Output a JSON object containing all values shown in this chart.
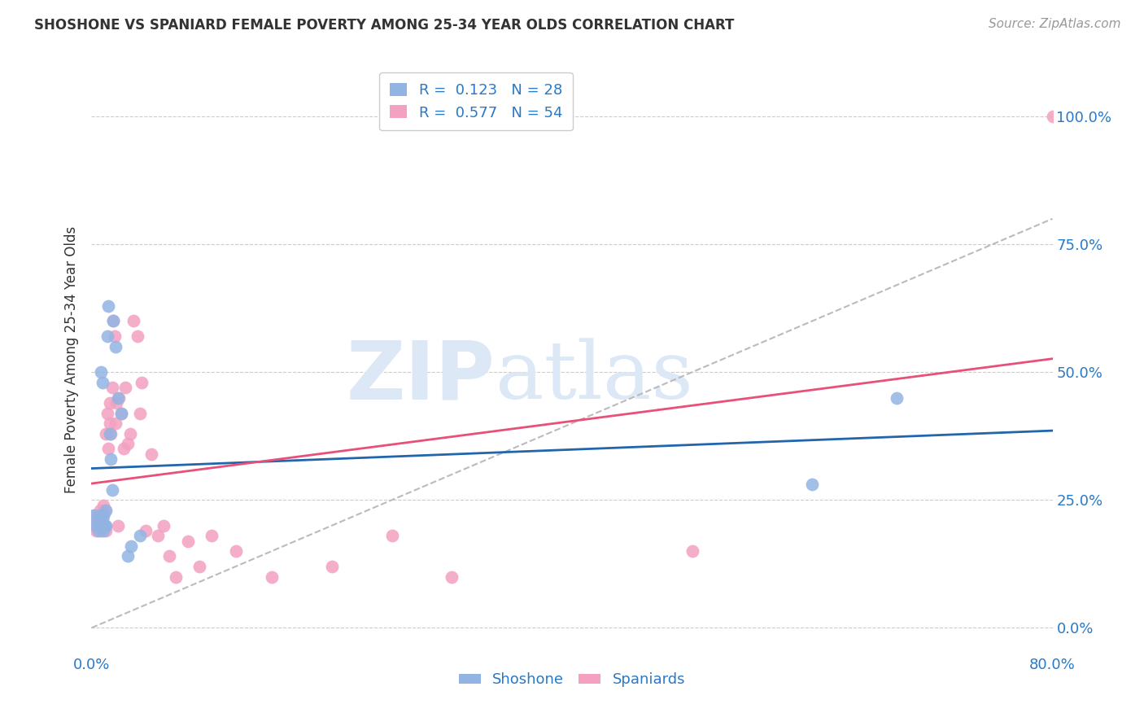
{
  "title": "SHOSHONE VS SPANIARD FEMALE POVERTY AMONG 25-34 YEAR OLDS CORRELATION CHART",
  "source": "Source: ZipAtlas.com",
  "ylabel": "Female Poverty Among 25-34 Year Olds",
  "xlim": [
    0.0,
    0.8
  ],
  "ylim": [
    -0.05,
    1.1
  ],
  "yticks": [
    0.0,
    0.25,
    0.5,
    0.75,
    1.0
  ],
  "ytick_labels": [
    "0.0%",
    "25.0%",
    "50.0%",
    "75.0%",
    "100.0%"
  ],
  "xtick_labels_left": [
    "0.0%",
    "80.0%"
  ],
  "xtick_positions_left": [
    0.0,
    0.8
  ],
  "shoshone_R": 0.123,
  "shoshone_N": 28,
  "spaniard_R": 0.577,
  "spaniard_N": 54,
  "shoshone_color": "#92b4e3",
  "spaniard_color": "#f4a0c0",
  "shoshone_line_color": "#2166ac",
  "spaniard_line_color": "#e8507a",
  "diagonal_color": "#bbbbbb",
  "background_color": "#ffffff",
  "grid_color": "#cccccc",
  "axis_label_color": "#2979c8",
  "title_color": "#333333",
  "watermark_zip": "ZIP",
  "watermark_atlas": "atlas",
  "watermark_color": "#dce8f5",
  "shoshone_x": [
    0.002,
    0.004,
    0.005,
    0.006,
    0.007,
    0.007,
    0.008,
    0.009,
    0.009,
    0.01,
    0.01,
    0.011,
    0.012,
    0.012,
    0.013,
    0.014,
    0.015,
    0.016,
    0.017,
    0.018,
    0.02,
    0.022,
    0.025,
    0.03,
    0.033,
    0.04,
    0.6,
    0.67
  ],
  "shoshone_y": [
    0.22,
    0.2,
    0.21,
    0.19,
    0.22,
    0.2,
    0.5,
    0.48,
    0.21,
    0.22,
    0.19,
    0.2,
    0.23,
    0.2,
    0.57,
    0.63,
    0.38,
    0.33,
    0.27,
    0.6,
    0.55,
    0.45,
    0.42,
    0.14,
    0.16,
    0.18,
    0.28,
    0.45
  ],
  "spaniard_x": [
    0.002,
    0.003,
    0.004,
    0.005,
    0.005,
    0.006,
    0.007,
    0.007,
    0.008,
    0.008,
    0.009,
    0.01,
    0.01,
    0.011,
    0.011,
    0.012,
    0.012,
    0.013,
    0.014,
    0.015,
    0.015,
    0.016,
    0.017,
    0.018,
    0.019,
    0.02,
    0.021,
    0.022,
    0.023,
    0.025,
    0.027,
    0.028,
    0.03,
    0.032,
    0.035,
    0.038,
    0.04,
    0.042,
    0.045,
    0.05,
    0.055,
    0.06,
    0.065,
    0.07,
    0.08,
    0.09,
    0.1,
    0.12,
    0.15,
    0.2,
    0.25,
    0.3,
    0.5,
    0.8
  ],
  "spaniard_y": [
    0.2,
    0.22,
    0.19,
    0.21,
    0.22,
    0.2,
    0.21,
    0.23,
    0.19,
    0.21,
    0.2,
    0.22,
    0.24,
    0.2,
    0.23,
    0.19,
    0.38,
    0.42,
    0.35,
    0.4,
    0.44,
    0.38,
    0.47,
    0.6,
    0.57,
    0.4,
    0.44,
    0.2,
    0.45,
    0.42,
    0.35,
    0.47,
    0.36,
    0.38,
    0.6,
    0.57,
    0.42,
    0.48,
    0.19,
    0.34,
    0.18,
    0.2,
    0.14,
    0.1,
    0.17,
    0.12,
    0.18,
    0.15,
    0.1,
    0.12,
    0.18,
    0.1,
    0.15,
    1.0
  ]
}
